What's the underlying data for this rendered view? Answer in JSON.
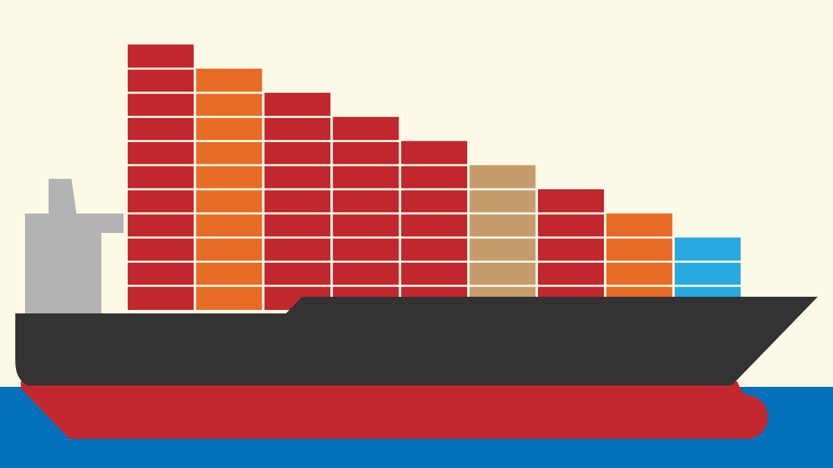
{
  "colors": {
    "sky": "#FCFAE6",
    "sea": "#0270BA",
    "hull_upper": "#333333",
    "hull_lower": "#C1272D",
    "superstructure": "#B3B3B3",
    "container_gap": "#FCFAE6"
  },
  "cargo": {
    "stacks": [
      {
        "color": "#C1272D",
        "containers": 11
      },
      {
        "color": "#E86B25",
        "containers": 10
      },
      {
        "color": "#C1272D",
        "containers": 9
      },
      {
        "color": "#C1272D",
        "containers": 8
      },
      {
        "color": "#C1272D",
        "containers": 7
      },
      {
        "color": "#C69C6D",
        "containers": 6
      },
      {
        "color": "#C1272D",
        "containers": 5
      },
      {
        "color": "#E86B25",
        "containers": 4
      },
      {
        "color": "#29A9E1",
        "containers": 3
      }
    ]
  }
}
